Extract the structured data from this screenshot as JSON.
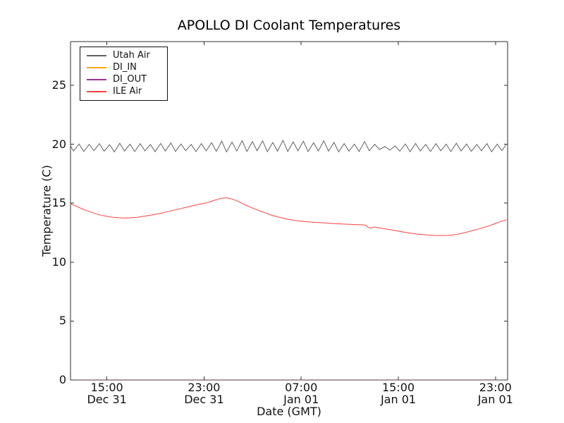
{
  "chart_data": {
    "type": "line",
    "title": "APOLLO DI Coolant Temperatures",
    "xlabel": "Date (GMT)",
    "ylabel": "Temperature (C)",
    "x_unit": "hours since Dec 31 12:00 GMT",
    "xlim": [
      0,
      36
    ],
    "ylim": [
      0,
      28.7
    ],
    "grid": false,
    "legend_position": "upper left",
    "axis_color": "#2e2e2e",
    "bottom_spine_color": "#4e3535",
    "tick_direction": "in",
    "x_ticks": [
      {
        "value": 3,
        "time": "15:00",
        "date": "Dec 31"
      },
      {
        "value": 11,
        "time": "23:00",
        "date": "Dec 31"
      },
      {
        "value": 19,
        "time": "07:00",
        "date": "Jan 01"
      },
      {
        "value": 27,
        "time": "15:00",
        "date": "Jan 01"
      },
      {
        "value": 35,
        "time": "23:00",
        "date": "Jan 01"
      }
    ],
    "y_ticks": [
      {
        "value": 0,
        "label": "0"
      },
      {
        "value": 5,
        "label": "5"
      },
      {
        "value": 10,
        "label": "10"
      },
      {
        "value": 15,
        "label": "15"
      },
      {
        "value": 20,
        "label": "20"
      },
      {
        "value": 25,
        "label": "25"
      }
    ],
    "series": [
      {
        "name": "Utah Air",
        "color": "#606060",
        "points": [
          [
            0,
            19.88
          ],
          [
            0.12,
            19.62
          ],
          [
            0.25,
            19.42
          ],
          [
            0.7,
            20.02
          ],
          [
            1.09,
            19.38
          ],
          [
            1.54,
            19.98
          ],
          [
            1.93,
            19.45
          ],
          [
            2.38,
            20.05
          ],
          [
            2.77,
            19.4
          ],
          [
            3.22,
            19.96
          ],
          [
            3.61,
            19.35
          ],
          [
            4.06,
            20.08
          ],
          [
            4.45,
            19.42
          ],
          [
            4.9,
            20.0
          ],
          [
            5.29,
            19.38
          ],
          [
            5.74,
            20.04
          ],
          [
            6.13,
            19.44
          ],
          [
            6.58,
            19.97
          ],
          [
            6.97,
            19.36
          ],
          [
            7.42,
            20.06
          ],
          [
            7.81,
            19.42
          ],
          [
            8.26,
            20.1
          ],
          [
            8.65,
            19.39
          ],
          [
            9.1,
            20.02
          ],
          [
            9.49,
            19.45
          ],
          [
            9.94,
            19.98
          ],
          [
            10.33,
            19.37
          ],
          [
            10.78,
            20.05
          ],
          [
            11.17,
            19.43
          ],
          [
            11.62,
            20.12
          ],
          [
            12.01,
            19.4
          ],
          [
            12.46,
            20.25
          ],
          [
            12.85,
            19.35
          ],
          [
            13.3,
            20.18
          ],
          [
            13.69,
            19.42
          ],
          [
            14.14,
            20.3
          ],
          [
            14.53,
            19.38
          ],
          [
            14.98,
            20.22
          ],
          [
            15.37,
            19.44
          ],
          [
            15.82,
            20.28
          ],
          [
            16.21,
            19.36
          ],
          [
            16.66,
            20.15
          ],
          [
            17.05,
            19.41
          ],
          [
            17.5,
            20.32
          ],
          [
            17.89,
            19.38
          ],
          [
            18.34,
            20.2
          ],
          [
            18.73,
            19.43
          ],
          [
            19.18,
            20.26
          ],
          [
            19.57,
            19.37
          ],
          [
            20.02,
            20.12
          ],
          [
            20.41,
            19.42
          ],
          [
            20.86,
            20.28
          ],
          [
            21.25,
            19.4
          ],
          [
            21.7,
            20.15
          ],
          [
            22.09,
            19.35
          ],
          [
            22.54,
            20.05
          ],
          [
            22.93,
            19.41
          ],
          [
            23.38,
            20.0
          ],
          [
            23.77,
            19.38
          ],
          [
            24.22,
            20.22
          ],
          [
            24.61,
            19.44
          ],
          [
            25.06,
            19.98
          ],
          [
            25.45,
            19.55
          ],
          [
            25.9,
            19.8
          ],
          [
            26.29,
            19.5
          ],
          [
            26.74,
            19.85
          ],
          [
            27.13,
            19.4
          ],
          [
            27.58,
            20.02
          ],
          [
            27.97,
            19.36
          ],
          [
            28.42,
            20.06
          ],
          [
            28.81,
            19.42
          ],
          [
            29.26,
            19.98
          ],
          [
            29.65,
            19.38
          ],
          [
            30.1,
            20.04
          ],
          [
            30.49,
            19.44
          ],
          [
            30.94,
            20.0
          ],
          [
            31.33,
            19.37
          ],
          [
            31.78,
            20.08
          ],
          [
            32.17,
            19.42
          ],
          [
            32.62,
            20.02
          ],
          [
            33.01,
            19.39
          ],
          [
            33.46,
            19.97
          ],
          [
            33.85,
            19.44
          ],
          [
            34.3,
            20.05
          ],
          [
            34.69,
            19.36
          ],
          [
            35.14,
            20.0
          ],
          [
            35.53,
            19.45
          ],
          [
            35.9,
            20.0
          ]
        ]
      },
      {
        "name": "DI_IN",
        "color": "#ffa500",
        "points": [
          [
            0,
            0
          ],
          [
            35.9,
            0
          ]
        ],
        "note": "reads 0 across the whole plot; hidden beneath the x-axis spine"
      },
      {
        "name": "DI_OUT",
        "color": "#993399",
        "points": [
          [
            0,
            0
          ],
          [
            35.9,
            0
          ]
        ],
        "note": "reads 0 across the whole plot; hidden beneath the x-axis spine"
      },
      {
        "name": "ILE Air",
        "color": "#ff4040",
        "points": [
          [
            0,
            14.95
          ],
          [
            0.5,
            14.72
          ],
          [
            1,
            14.5
          ],
          [
            1.5,
            14.3
          ],
          [
            2,
            14.12
          ],
          [
            2.5,
            13.98
          ],
          [
            3,
            13.88
          ],
          [
            3.5,
            13.8
          ],
          [
            4,
            13.76
          ],
          [
            4.5,
            13.74
          ],
          [
            5,
            13.76
          ],
          [
            5.5,
            13.8
          ],
          [
            6,
            13.88
          ],
          [
            6.5,
            13.96
          ],
          [
            7,
            14.05
          ],
          [
            7.5,
            14.16
          ],
          [
            8,
            14.28
          ],
          [
            8.5,
            14.4
          ],
          [
            9,
            14.52
          ],
          [
            9.5,
            14.64
          ],
          [
            10,
            14.76
          ],
          [
            10.5,
            14.88
          ],
          [
            11,
            14.98
          ],
          [
            11.3,
            15.05
          ],
          [
            11.5,
            15.12
          ],
          [
            11.8,
            15.22
          ],
          [
            12.2,
            15.35
          ],
          [
            12.6,
            15.43
          ],
          [
            12.9,
            15.45
          ],
          [
            13.3,
            15.35
          ],
          [
            13.7,
            15.2
          ],
          [
            14,
            15.05
          ],
          [
            14.5,
            14.8
          ],
          [
            15,
            14.58
          ],
          [
            15.5,
            14.38
          ],
          [
            16,
            14.18
          ],
          [
            16.5,
            14.0
          ],
          [
            17,
            13.85
          ],
          [
            17.5,
            13.72
          ],
          [
            18,
            13.62
          ],
          [
            18.5,
            13.53
          ],
          [
            19,
            13.47
          ],
          [
            19.5,
            13.42
          ],
          [
            20,
            13.38
          ],
          [
            20.5,
            13.35
          ],
          [
            21,
            13.32
          ],
          [
            21.5,
            13.28
          ],
          [
            22,
            13.25
          ],
          [
            22.5,
            13.22
          ],
          [
            23,
            13.2
          ],
          [
            23.5,
            13.18
          ],
          [
            24,
            13.16
          ],
          [
            24.3,
            13.14
          ],
          [
            24.5,
            12.95
          ],
          [
            24.8,
            12.88
          ],
          [
            25,
            12.98
          ],
          [
            25.3,
            12.92
          ],
          [
            25.6,
            12.87
          ],
          [
            26,
            12.8
          ],
          [
            26.5,
            12.72
          ],
          [
            27,
            12.62
          ],
          [
            27.5,
            12.53
          ],
          [
            28,
            12.45
          ],
          [
            28.5,
            12.38
          ],
          [
            29,
            12.33
          ],
          [
            29.5,
            12.29
          ],
          [
            30,
            12.26
          ],
          [
            30.5,
            12.25
          ],
          [
            31,
            12.26
          ],
          [
            31.5,
            12.3
          ],
          [
            32,
            12.38
          ],
          [
            32.5,
            12.5
          ],
          [
            33,
            12.64
          ],
          [
            33.5,
            12.78
          ],
          [
            34,
            12.92
          ],
          [
            34.5,
            13.08
          ],
          [
            35,
            13.28
          ],
          [
            35.5,
            13.47
          ],
          [
            35.9,
            13.58
          ]
        ]
      }
    ]
  }
}
